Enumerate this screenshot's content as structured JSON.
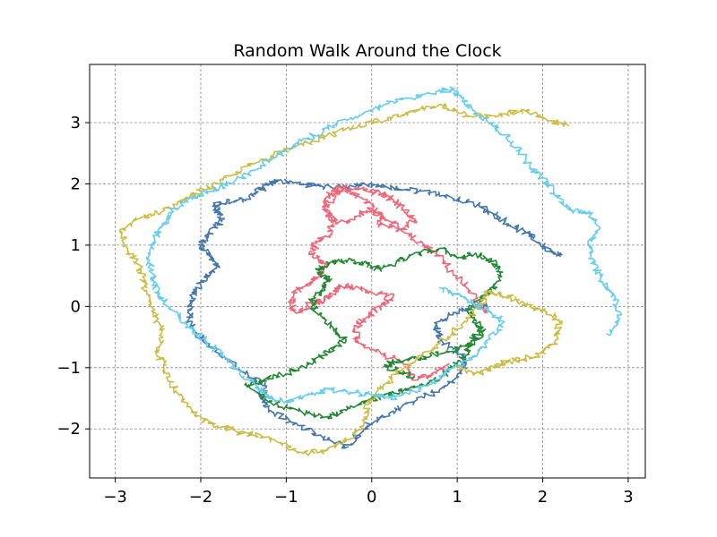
{
  "chart_data": {
    "type": "line",
    "title": "Random Walk Around the Clock",
    "xlabel": "",
    "ylabel": "",
    "xlim": [
      -3.3,
      3.2
    ],
    "ylim": [
      -2.8,
      3.95
    ],
    "xticks": [
      -3,
      -2,
      -1,
      0,
      1,
      2,
      3
    ],
    "xtick_labels": [
      "−3",
      "−2",
      "−1",
      "0",
      "1",
      "2",
      "3"
    ],
    "yticks": [
      -2,
      -1,
      0,
      1,
      2,
      3
    ],
    "ytick_labels": [
      "−2",
      "−1",
      "0",
      "1",
      "2",
      "3"
    ],
    "grid": true,
    "legend": "none",
    "colors": [
      "#4477AA",
      "#EE6677",
      "#228833",
      "#CCBB44",
      "#66CCEE"
    ],
    "series": [
      {
        "color": "#4477AA",
        "x": [
          1.35,
          1.2,
          0.95,
          0.75,
          0.8,
          0.95,
          1.1,
          1.05,
          0.8,
          0.5,
          0.2,
          0.0,
          -0.15,
          -0.3,
          -0.6,
          -0.9,
          -1.2,
          -1.3,
          -1.25,
          -1.45,
          -1.7,
          -1.95,
          -2.1,
          -2.15,
          -2.1,
          -2.0,
          -1.9,
          -1.8,
          -1.9,
          -2.0,
          -1.9,
          -1.75,
          -1.8,
          -1.85,
          -1.7,
          -1.5,
          -1.3,
          -1.2,
          -1.1,
          -0.8,
          -0.55,
          -0.3,
          -0.1,
          0.15,
          0.45,
          0.75,
          1.0,
          1.25,
          1.45,
          1.6,
          1.8,
          1.95,
          2.1,
          2.2
        ],
        "y": [
          0.0,
          0.0,
          -0.1,
          -0.3,
          -0.55,
          -0.7,
          -0.85,
          -1.1,
          -1.35,
          -1.55,
          -1.75,
          -1.9,
          -2.1,
          -2.3,
          -2.1,
          -1.9,
          -1.7,
          -1.5,
          -1.3,
          -1.1,
          -0.85,
          -0.6,
          -0.35,
          -0.1,
          0.15,
          0.4,
          0.55,
          0.7,
          0.85,
          1.0,
          1.2,
          1.4,
          1.55,
          1.65,
          1.7,
          1.75,
          1.9,
          2.0,
          2.05,
          2.0,
          1.95,
          1.95,
          2.0,
          1.95,
          1.9,
          1.85,
          1.75,
          1.65,
          1.5,
          1.35,
          1.2,
          1.05,
          0.9,
          0.85
        ]
      },
      {
        "color": "#EE6677",
        "x": [
          0.9,
          0.7,
          0.5,
          0.35,
          0.1,
          -0.15,
          -0.2,
          -0.1,
          0.1,
          0.25,
          -0.05,
          -0.3,
          -0.45,
          -0.55,
          -0.7,
          -0.85,
          -0.95,
          -0.9,
          -0.75,
          -0.6,
          -0.55,
          -0.7,
          -0.65,
          -0.5,
          -0.45,
          -0.55,
          -0.45,
          -0.3,
          -0.1,
          0.1,
          0.25,
          0.35,
          0.5,
          0.35,
          0.1,
          0.05,
          -0.1,
          -0.35,
          -0.5,
          -0.55,
          -0.4,
          -0.2,
          0.0,
          0.15,
          0.35,
          0.55,
          0.75,
          0.95,
          1.15,
          1.3,
          1.35
        ],
        "y": [
          -0.95,
          -1.1,
          -1.2,
          -0.9,
          -0.75,
          -0.6,
          -0.4,
          -0.2,
          0.0,
          0.15,
          0.25,
          0.35,
          0.25,
          0.1,
          0.05,
          -0.1,
          0.0,
          0.25,
          0.35,
          0.5,
          0.7,
          0.85,
          1.05,
          1.15,
          1.4,
          1.6,
          1.8,
          1.9,
          1.9,
          1.85,
          1.75,
          1.6,
          1.4,
          1.25,
          1.35,
          1.55,
          1.75,
          1.95,
          1.85,
          1.6,
          1.35,
          1.45,
          1.6,
          1.45,
          1.25,
          1.05,
          0.85,
          0.55,
          0.25,
          -0.05,
          -0.1
        ]
      },
      {
        "color": "#228833",
        "x": [
          1.3,
          1.15,
          1.1,
          0.95,
          0.8,
          0.6,
          0.35,
          0.15,
          -0.05,
          -0.3,
          -0.5,
          -0.75,
          -1.0,
          -1.2,
          -1.45,
          -1.3,
          -1.0,
          -0.75,
          -0.5,
          -0.3,
          -0.45,
          -0.65,
          -0.7,
          -0.55,
          -0.5,
          -0.65,
          -0.5,
          -0.3,
          -0.1,
          0.1,
          0.3,
          0.55,
          0.8,
          1.0,
          1.2,
          1.4,
          1.5,
          1.45,
          1.3,
          1.15,
          1.2,
          1.3,
          1.1,
          0.9,
          0.7,
          0.5,
          0.3,
          0.15,
          0.3,
          0.5
        ],
        "y": [
          -0.35,
          -0.6,
          -0.8,
          -1.0,
          -1.15,
          -1.3,
          -1.35,
          -1.45,
          -1.55,
          -1.7,
          -1.8,
          -1.75,
          -1.65,
          -1.55,
          -1.3,
          -1.2,
          -1.1,
          -0.95,
          -0.75,
          -0.55,
          -0.35,
          -0.1,
          0.1,
          0.3,
          0.45,
          0.6,
          0.7,
          0.75,
          0.7,
          0.6,
          0.75,
          0.85,
          0.95,
          0.8,
          0.85,
          0.75,
          0.55,
          0.3,
          0.15,
          -0.05,
          -0.2,
          -0.45,
          -0.65,
          -0.75,
          -0.8,
          -0.85,
          -0.9,
          -0.95,
          -1.05,
          -1.15
        ]
      },
      {
        "color": "#CCBB44",
        "x": [
          1.0,
          1.2,
          1.35,
          1.5,
          1.6,
          1.8,
          2.0,
          2.15,
          2.2,
          2.05,
          1.85,
          1.7,
          1.5,
          1.35,
          1.3,
          1.05,
          0.8,
          0.55,
          0.3,
          0.1,
          -0.05,
          -0.1,
          -0.3,
          -0.55,
          -0.8,
          -1.05,
          -1.3,
          -1.55,
          -1.8,
          -2.05,
          -2.25,
          -2.4,
          -2.5,
          -2.45,
          -2.55,
          -2.65,
          -2.7,
          -2.85,
          -2.95,
          -2.7,
          -2.45,
          -2.2,
          -1.95,
          -1.7,
          -1.45,
          -1.15,
          -0.9,
          -0.6,
          -0.3,
          0.0,
          0.3,
          0.55,
          0.8,
          1.05,
          1.3,
          1.55,
          1.8,
          2.05,
          2.3
        ],
        "y": [
          -1.0,
          -1.1,
          -1.05,
          -0.95,
          -0.9,
          -0.85,
          -0.75,
          -0.55,
          -0.25,
          -0.1,
          0.0,
          0.1,
          0.2,
          0.25,
          0.05,
          -0.3,
          -0.6,
          -0.85,
          -1.1,
          -1.35,
          -1.6,
          -1.95,
          -2.2,
          -2.35,
          -2.4,
          -2.25,
          -2.1,
          -2.05,
          -1.95,
          -1.8,
          -1.45,
          -1.1,
          -0.75,
          -0.4,
          -0.1,
          0.25,
          0.6,
          0.9,
          1.25,
          1.45,
          1.55,
          1.75,
          1.9,
          2.1,
          2.3,
          2.45,
          2.6,
          2.75,
          2.9,
          3.0,
          3.1,
          3.2,
          3.3,
          3.15,
          3.1,
          3.15,
          3.2,
          3.05,
          2.95
        ]
      },
      {
        "color": "#66CCEE",
        "x": [
          0.8,
          1.0,
          1.2,
          1.4,
          1.55,
          1.35,
          1.15,
          0.9,
          0.7,
          0.45,
          0.2,
          0.0,
          -0.25,
          -0.5,
          -0.75,
          -1.0,
          -1.2,
          -1.35,
          -1.55,
          -1.75,
          -1.95,
          -2.15,
          -2.35,
          -2.5,
          -2.55,
          -2.6,
          -2.55,
          -2.45,
          -2.3,
          -2.1,
          -1.85,
          -1.6,
          -1.3,
          -1.0,
          -0.75,
          -0.45,
          -0.15,
          0.15,
          0.45,
          0.75,
          0.95,
          1.05,
          1.2,
          1.4,
          1.55,
          1.7,
          1.85,
          2.0,
          2.15,
          2.35,
          2.55,
          2.65,
          2.55,
          2.6,
          2.7,
          2.85,
          2.9,
          2.75
        ],
        "y": [
          0.3,
          0.2,
          0.05,
          -0.1,
          -0.25,
          -0.6,
          -0.85,
          -1.05,
          -1.25,
          -1.4,
          -1.5,
          -1.45,
          -1.4,
          -1.35,
          -1.45,
          -1.55,
          -1.5,
          -1.3,
          -1.05,
          -0.8,
          -0.55,
          -0.3,
          -0.05,
          0.2,
          0.45,
          0.75,
          1.05,
          1.35,
          1.6,
          1.75,
          1.9,
          2.05,
          2.3,
          2.55,
          2.75,
          2.95,
          3.1,
          3.3,
          3.4,
          3.5,
          3.55,
          3.4,
          3.2,
          3.0,
          2.8,
          2.6,
          2.3,
          2.1,
          1.8,
          1.55,
          1.55,
          1.25,
          1.0,
          0.7,
          0.4,
          0.15,
          -0.2,
          -0.45
        ]
      }
    ]
  }
}
